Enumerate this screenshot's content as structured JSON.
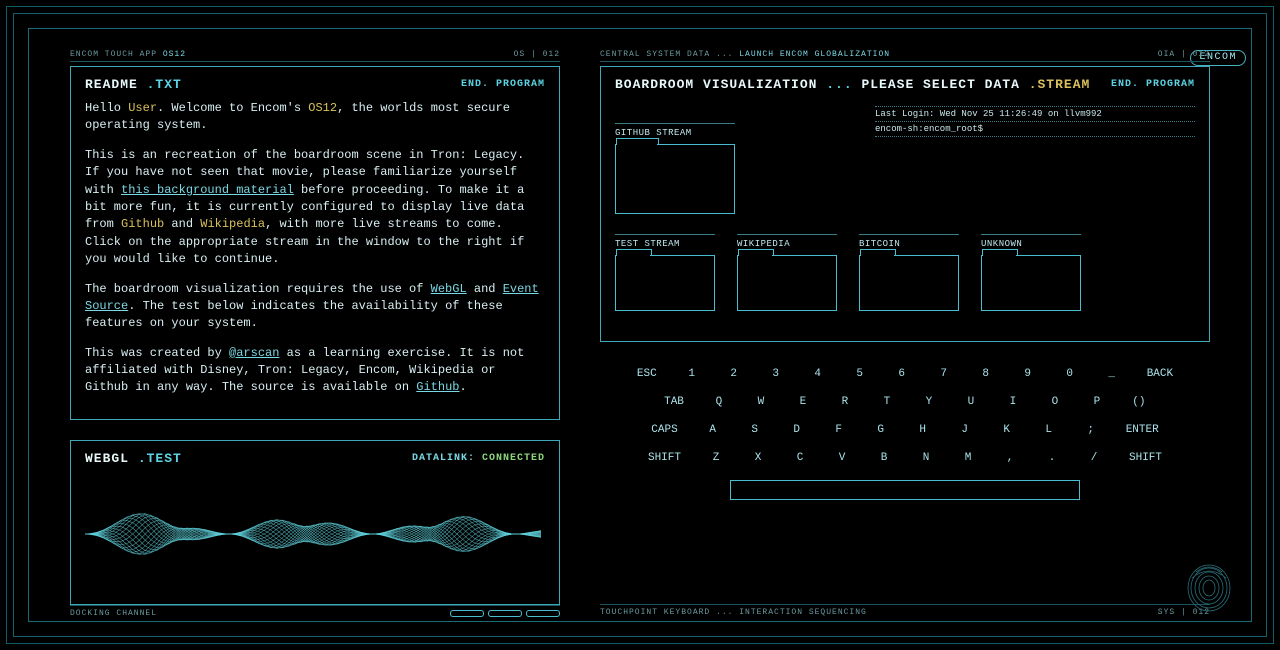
{
  "colors": {
    "bg": "#000000",
    "cyan": "#5dd4e4",
    "cyan_dim": "#3da9b8",
    "text": "#d8eef1",
    "yellow": "#d9c05a",
    "green": "#8dd67d",
    "border_outer": "#0d5c67"
  },
  "logo": "ENCOM",
  "left": {
    "topbar": {
      "prefix": "ENCOM TOUCH APP ",
      "suffix": "OS12",
      "right": "OS | 012"
    },
    "readme": {
      "title": "README ",
      "title_ext": ".TXT",
      "end": "END. PROGRAM",
      "p1a": "Hello ",
      "p1b": "User",
      "p1c": ". Welcome to Encom's ",
      "p1d": "OS12",
      "p1e": ", the worlds most secure operating system.",
      "p2a": "This is an recreation of the boardroom scene in Tron: Legacy. If you have not seen that movie, please familiarize yourself with ",
      "p2_link1": "this background material",
      "p2b": " before proceeding. To make it a bit more fun, it is currently configured to display live data from ",
      "p2c": "Github",
      "p2d": " and ",
      "p2e": "Wikipedia",
      "p2f": ", with more live streams to come. Click on the appropriate stream in the window to the right if you would like to continue.",
      "p3a": "The boardroom visualization requires the use of ",
      "p3_link1": "WebGL",
      "p3b": " and ",
      "p3_link2": "Event Source",
      "p3c": ". The test below indicates the availability of these features on your system.",
      "p4a": "This was created by ",
      "p4_link": "@arscan",
      "p4b": " as a learning exercise. It is not affiliated with Disney, Tron: Legacy, Encom, Wikipedia or Github in any way. The source is available on ",
      "p4_link2": "Github",
      "p4c": "."
    },
    "webgl": {
      "title": "WEBGL ",
      "title_ext": ".TEST",
      "datalink": "DATALINK: ",
      "status": "CONNECTED",
      "viz_color": "#5ecfd9"
    },
    "bottombar": "DOCKING CHANNEL"
  },
  "right": {
    "topbar": {
      "a": "CENTRAL SYSTEM DATA ",
      "b": "... ",
      "c": "LAUNCH ENCOM GLOBALIZATION",
      "right": "OIA | 012"
    },
    "boardroom": {
      "title_a": "BOARDROOM VISUALIZATION ",
      "title_b": "... ",
      "title_c": "PLEASE SELECT DATA ",
      "title_d": ".STREAM",
      "end": "END. PROGRAM",
      "term1": "Last Login: Wed Nov 25 11:26:49 on llvm992",
      "term2": "encom-sh:encom_root$",
      "folders_top": [
        {
          "label": "GITHUB STREAM"
        }
      ],
      "folders": [
        {
          "label": "TEST STREAM"
        },
        {
          "label": "WIKIPEDIA"
        },
        {
          "label": "BITCOIN"
        },
        {
          "label": "UNKNOWN"
        }
      ]
    },
    "keyboard": {
      "row1": [
        "ESC",
        "1",
        "2",
        "3",
        "4",
        "5",
        "6",
        "7",
        "8",
        "9",
        "0",
        "_",
        "BACK"
      ],
      "row2": [
        "TAB",
        "Q",
        "W",
        "E",
        "R",
        "T",
        "Y",
        "U",
        "I",
        "O",
        "P",
        "()"
      ],
      "row3": [
        "CAPS",
        "A",
        "S",
        "D",
        "F",
        "G",
        "H",
        "J",
        "K",
        "L",
        ";",
        "ENTER"
      ],
      "row4": [
        "SHIFT",
        "Z",
        "X",
        "C",
        "V",
        "B",
        "N",
        "M",
        ",",
        ".",
        "/",
        "SHIFT"
      ]
    },
    "bottombar": {
      "a": "TOUCHPOINT KEYBOARD ",
      "b": "... ",
      "c": "INTERACTION SEQUENCING",
      "right": "SYS | 012"
    }
  }
}
